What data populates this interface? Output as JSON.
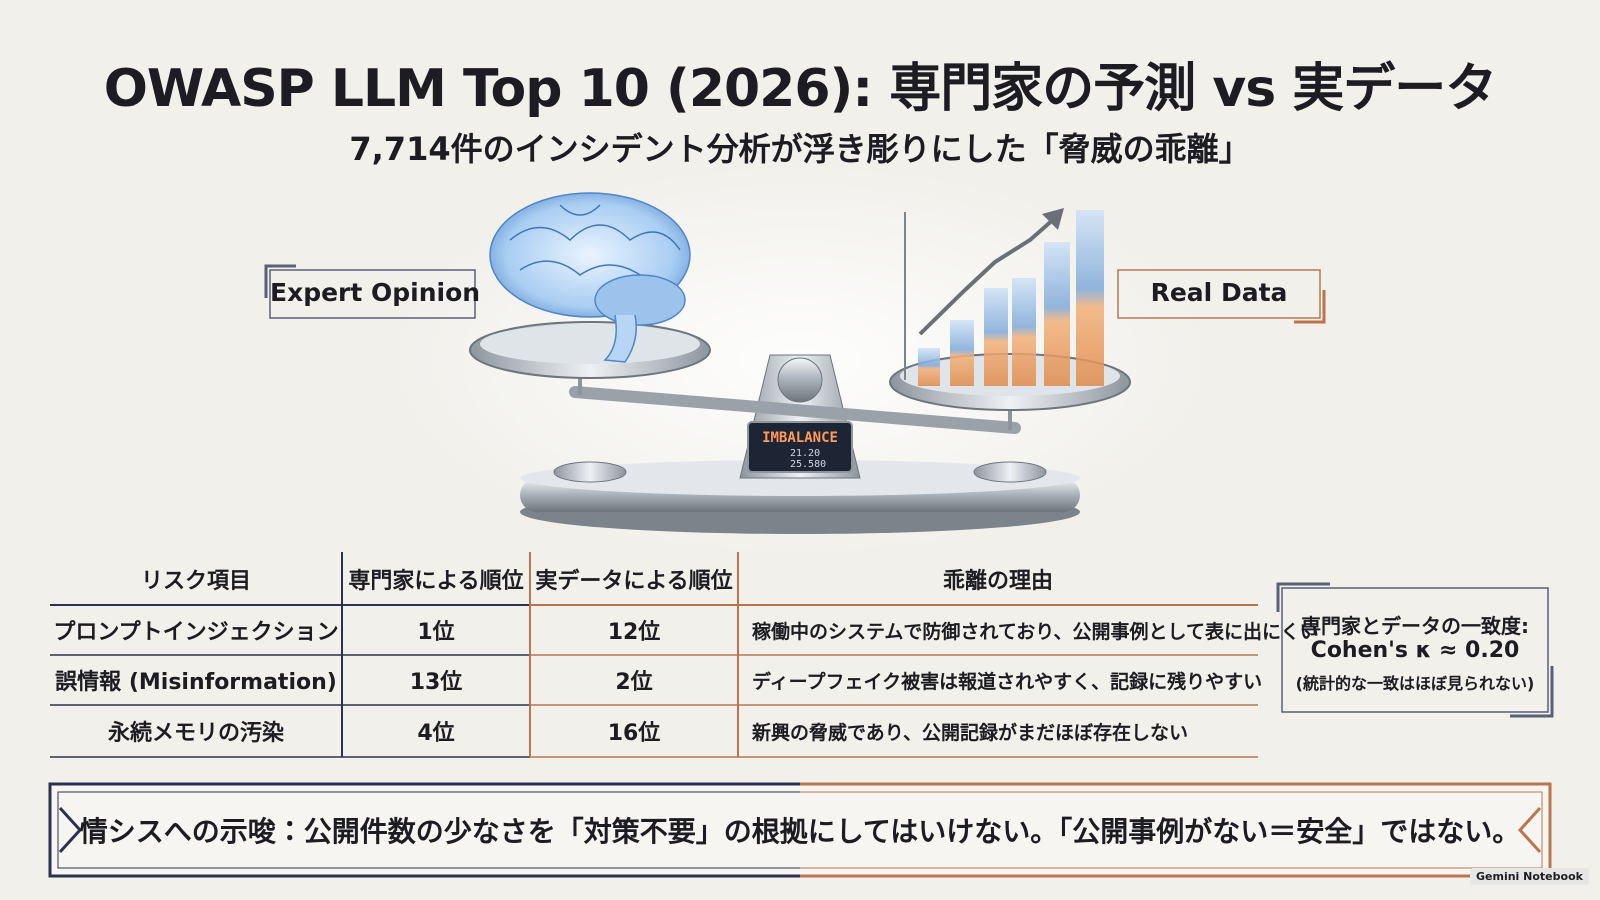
{
  "header": {
    "title": "OWASP LLM Top 10 (2026): 専門家の予測 vs 実データ",
    "subtitle": "7,714件のインシデント分析が浮き彫りにした「脅威の乖離」"
  },
  "illustration": {
    "left_label": "Expert Opinion",
    "right_label": "Real Data",
    "display": {
      "heading": "IMBALANCE",
      "readouts": [
        "21.20",
        "25.580"
      ]
    }
  },
  "table": {
    "headers": [
      "リスク項目",
      "専門家による順位",
      "実データによる順位",
      "乖離の理由"
    ],
    "rows": [
      [
        "プロンプトインジェクション",
        "1位",
        "12位",
        "稼働中のシステムで防御されており、公開事例として表に出にくい"
      ],
      [
        "誤情報 (Misinformation)",
        "13位",
        "2位",
        "ディープフェイク被害は報道されやすく、記録に残りやすい"
      ],
      [
        "永続メモリの汚染",
        "4位",
        "16位",
        "新興の脅威であり、公開記録がまだほぼ存在しない"
      ]
    ]
  },
  "agreement": {
    "heading": "専門家とデータの一致度:",
    "statistic": "Cohen's κ ≈ 0.20",
    "note": "(統計的な一致はほぼ見られない)"
  },
  "implication": "情シスへの示唆：公開件数の少なさを「対策不要」の根拠にしてはいけない。「公開事例がない＝安全」ではない。",
  "footer": "Gemini Notebook"
}
